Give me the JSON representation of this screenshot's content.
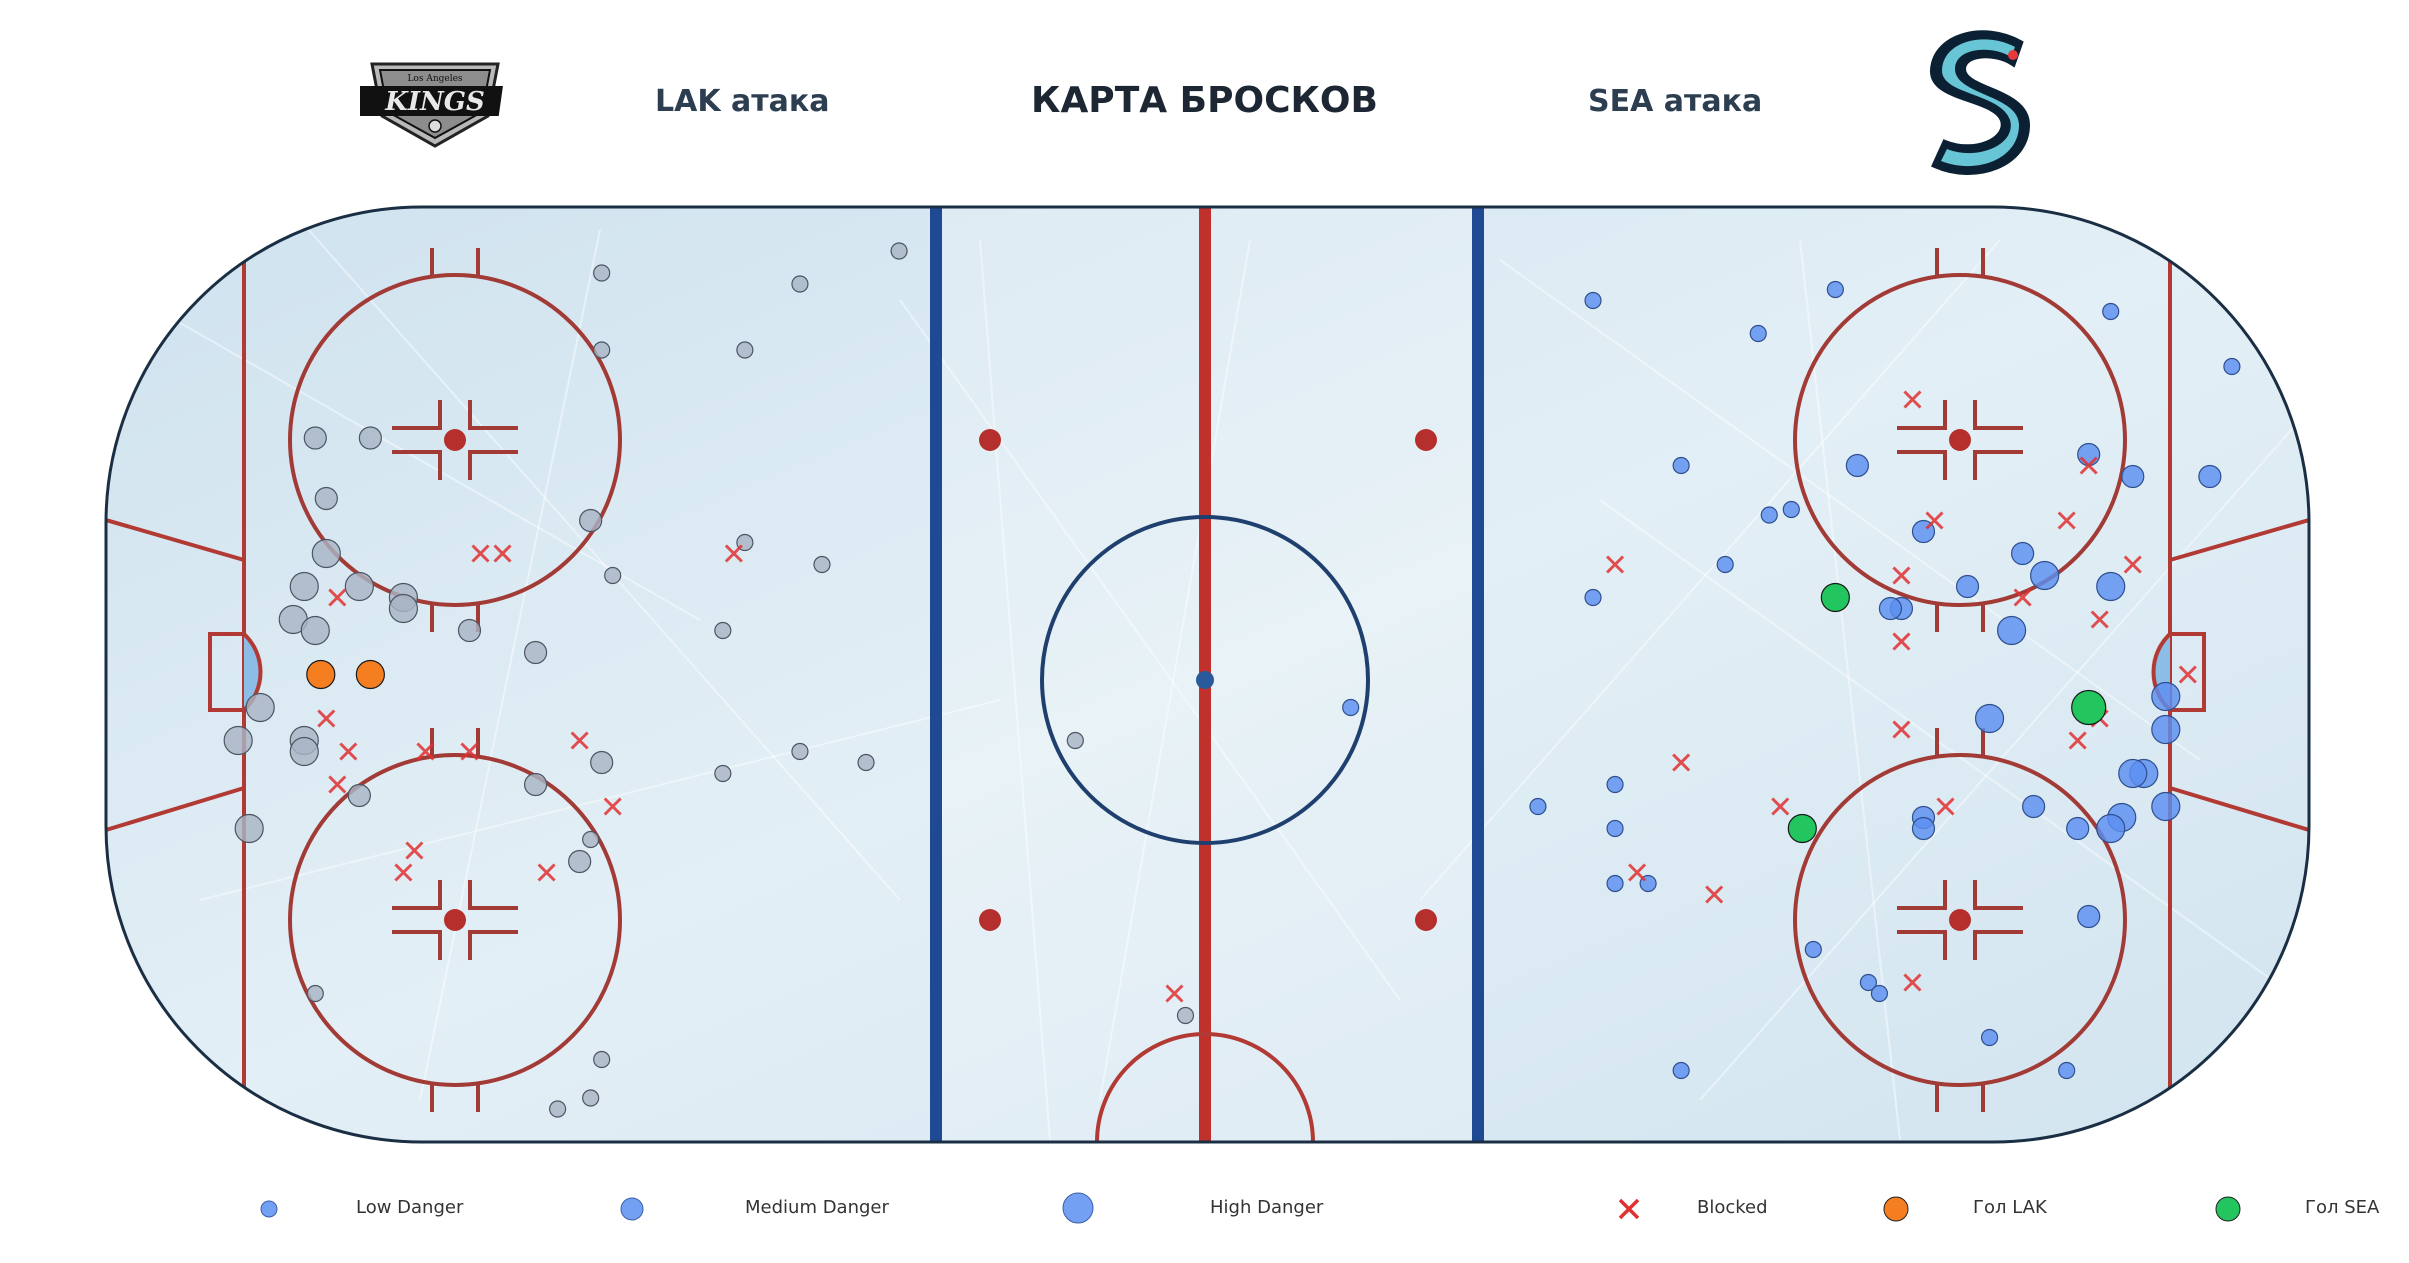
{
  "header": {
    "title": "КАРТА БРОСКОВ",
    "left_team": "LAK атака",
    "right_team": "SEA атака",
    "left_logo_text": "KINGS",
    "left_logo_small": "Los Angeles"
  },
  "legend": {
    "low": "Low Danger",
    "medium": "Medium Danger",
    "high": "High Danger",
    "blocked": "Blocked",
    "goal_lak": "Гол LAK",
    "goal_sea": "Гол SEA"
  },
  "colors": {
    "lak_shot": "#a8b4c4",
    "sea_shot": "#5b8ff0",
    "goal_lak": "#f57f20",
    "goal_sea": "#22c55e",
    "blocked": "#e03030",
    "red_line": "#c0312c",
    "blue_line": "#1f4a93",
    "ice": "#dbe9f2"
  },
  "chart_data": {
    "type": "scatter",
    "title": "КАРТА БРОСКОВ",
    "rink": {
      "x_range": [
        -100,
        100
      ],
      "y_range": [
        -42.5,
        42.5
      ]
    },
    "series": [
      {
        "name": "LAK атака",
        "team": "LAK",
        "shots": [
          {
            "x": -55,
            "y": 36.5,
            "s": 1
          },
          {
            "x": -37,
            "y": 35.5,
            "s": 1
          },
          {
            "x": -28,
            "y": 38.5,
            "s": 1
          },
          {
            "x": -55,
            "y": 29.5,
            "s": 1
          },
          {
            "x": -42,
            "y": 29.5,
            "s": 1
          },
          {
            "x": -81,
            "y": 21.5,
            "s": 2
          },
          {
            "x": -76,
            "y": 21.5,
            "s": 2
          },
          {
            "x": -80,
            "y": 16,
            "s": 2
          },
          {
            "x": -56,
            "y": 14,
            "s": 2
          },
          {
            "x": -42,
            "y": 12,
            "s": 1
          },
          {
            "x": -35,
            "y": 10,
            "s": 1
          },
          {
            "x": -54,
            "y": 9,
            "s": 1
          },
          {
            "x": -80,
            "y": 11,
            "s": 3
          },
          {
            "x": -82,
            "y": 8,
            "s": 3
          },
          {
            "x": -77,
            "y": 8,
            "s": 3
          },
          {
            "x": -73,
            "y": 7,
            "s": 3
          },
          {
            "x": -73,
            "y": 6,
            "s": 3
          },
          {
            "x": -83,
            "y": 5,
            "s": 3
          },
          {
            "x": -81,
            "y": 4,
            "s": 3
          },
          {
            "x": -67,
            "y": 4,
            "s": 2
          },
          {
            "x": -61,
            "y": 2,
            "s": 2
          },
          {
            "x": -44,
            "y": 4,
            "s": 1
          },
          {
            "x": -86,
            "y": -3,
            "s": 3
          },
          {
            "x": -88,
            "y": -6,
            "s": 3
          },
          {
            "x": -82,
            "y": -6,
            "s": 3
          },
          {
            "x": -82,
            "y": -7,
            "s": 3
          },
          {
            "x": -77,
            "y": -11,
            "s": 2
          },
          {
            "x": -55,
            "y": -8,
            "s": 2
          },
          {
            "x": -61,
            "y": -10,
            "s": 2
          },
          {
            "x": -44,
            "y": -9,
            "s": 1
          },
          {
            "x": -37,
            "y": -7,
            "s": 1
          },
          {
            "x": -31,
            "y": -8,
            "s": 1
          },
          {
            "x": -87,
            "y": -14,
            "s": 3
          },
          {
            "x": -57,
            "y": -17,
            "s": 2
          },
          {
            "x": -56,
            "y": -15,
            "s": 1
          },
          {
            "x": -81,
            "y": -29,
            "s": 1
          },
          {
            "x": -55,
            "y": -35,
            "s": 1
          },
          {
            "x": -56,
            "y": -38.5,
            "s": 1
          },
          {
            "x": -59,
            "y": -39.5,
            "s": 1
          },
          {
            "x": -12,
            "y": -6,
            "s": 1
          },
          {
            "x": -2,
            "y": -31,
            "s": 1
          }
        ],
        "goals": [
          {
            "x": -80.5,
            "y": 0,
            "s": 3
          },
          {
            "x": -76,
            "y": 0,
            "s": 3
          }
        ],
        "blocked": [
          {
            "x": -79,
            "y": 7
          },
          {
            "x": -66,
            "y": 11
          },
          {
            "x": -64,
            "y": 11
          },
          {
            "x": -43,
            "y": 11
          },
          {
            "x": -80,
            "y": -4
          },
          {
            "x": -78,
            "y": -7
          },
          {
            "x": -79,
            "y": -10
          },
          {
            "x": -71,
            "y": -7
          },
          {
            "x": -67,
            "y": -7
          },
          {
            "x": -57,
            "y": -6
          },
          {
            "x": -54,
            "y": -12
          },
          {
            "x": -72,
            "y": -16
          },
          {
            "x": -73,
            "y": -18
          },
          {
            "x": -60,
            "y": -18
          },
          {
            "x": -3,
            "y": -29
          }
        ]
      },
      {
        "name": "SEA атака",
        "team": "SEA",
        "shots": [
          {
            "x": 35,
            "y": 34,
            "s": 1
          },
          {
            "x": 57,
            "y": 35,
            "s": 1
          },
          {
            "x": 50,
            "y": 31,
            "s": 1
          },
          {
            "x": 82,
            "y": 33,
            "s": 1
          },
          {
            "x": 93,
            "y": 28,
            "s": 1
          },
          {
            "x": 43,
            "y": 19,
            "s": 1
          },
          {
            "x": 59,
            "y": 19,
            "s": 2
          },
          {
            "x": 80,
            "y": 20,
            "s": 2
          },
          {
            "x": 84,
            "y": 18,
            "s": 2
          },
          {
            "x": 91,
            "y": 18,
            "s": 2
          },
          {
            "x": 53,
            "y": 15,
            "s": 1
          },
          {
            "x": 51,
            "y": 14.5,
            "s": 1
          },
          {
            "x": 65,
            "y": 13,
            "s": 2
          },
          {
            "x": 74,
            "y": 11,
            "s": 2
          },
          {
            "x": 76,
            "y": 9,
            "s": 3
          },
          {
            "x": 47,
            "y": 10,
            "s": 1
          },
          {
            "x": 35,
            "y": 7,
            "s": 1
          },
          {
            "x": 63,
            "y": 6,
            "s": 2
          },
          {
            "x": 69,
            "y": 8,
            "s": 2
          },
          {
            "x": 82,
            "y": 8,
            "s": 3
          },
          {
            "x": 62,
            "y": 6,
            "s": 2
          },
          {
            "x": 73,
            "y": 4,
            "s": 3
          },
          {
            "x": 87,
            "y": -2,
            "s": 3
          },
          {
            "x": 71,
            "y": -4,
            "s": 3
          },
          {
            "x": 87,
            "y": -5,
            "s": 3
          },
          {
            "x": 85,
            "y": -9,
            "s": 3
          },
          {
            "x": 84,
            "y": -9,
            "s": 3
          },
          {
            "x": 30,
            "y": -12,
            "s": 1
          },
          {
            "x": 37,
            "y": -10,
            "s": 1
          },
          {
            "x": 37,
            "y": -14,
            "s": 1
          },
          {
            "x": 65,
            "y": -13,
            "s": 2
          },
          {
            "x": 65,
            "y": -14,
            "s": 2
          },
          {
            "x": 75,
            "y": -12,
            "s": 2
          },
          {
            "x": 79,
            "y": -14,
            "s": 2
          },
          {
            "x": 83,
            "y": -13,
            "s": 3
          },
          {
            "x": 82,
            "y": -14,
            "s": 3
          },
          {
            "x": 87,
            "y": -12,
            "s": 3
          },
          {
            "x": 37,
            "y": -19,
            "s": 1
          },
          {
            "x": 40,
            "y": -19,
            "s": 1
          },
          {
            "x": 80,
            "y": -22,
            "s": 2
          },
          {
            "x": 55,
            "y": -25,
            "s": 1
          },
          {
            "x": 60,
            "y": -28,
            "s": 1
          },
          {
            "x": 61,
            "y": -29,
            "s": 1
          },
          {
            "x": 71,
            "y": -33,
            "s": 1
          },
          {
            "x": 43,
            "y": -36,
            "s": 1
          },
          {
            "x": 78,
            "y": -36,
            "s": 1
          },
          {
            "x": 13,
            "y": -3,
            "s": 1
          }
        ],
        "goals": [
          {
            "x": 57,
            "y": 7,
            "s": 3
          },
          {
            "x": 80,
            "y": -3,
            "s": 4
          },
          {
            "x": 54,
            "y": -14,
            "s": 3
          }
        ],
        "blocked": [
          {
            "x": 64,
            "y": 25
          },
          {
            "x": 80,
            "y": 19
          },
          {
            "x": 66,
            "y": 14
          },
          {
            "x": 78,
            "y": 14
          },
          {
            "x": 37,
            "y": 10
          },
          {
            "x": 63,
            "y": 9
          },
          {
            "x": 74,
            "y": 7
          },
          {
            "x": 84,
            "y": 10
          },
          {
            "x": 81,
            "y": 5
          },
          {
            "x": 63,
            "y": 3
          },
          {
            "x": 89,
            "y": 0
          },
          {
            "x": 81,
            "y": -4
          },
          {
            "x": 79,
            "y": -6
          },
          {
            "x": 63,
            "y": -5
          },
          {
            "x": 43,
            "y": -8
          },
          {
            "x": 52,
            "y": -12
          },
          {
            "x": 67,
            "y": -12
          },
          {
            "x": 39,
            "y": -18
          },
          {
            "x": 46,
            "y": -20
          },
          {
            "x": 64,
            "y": -28
          }
        ]
      }
    ]
  }
}
